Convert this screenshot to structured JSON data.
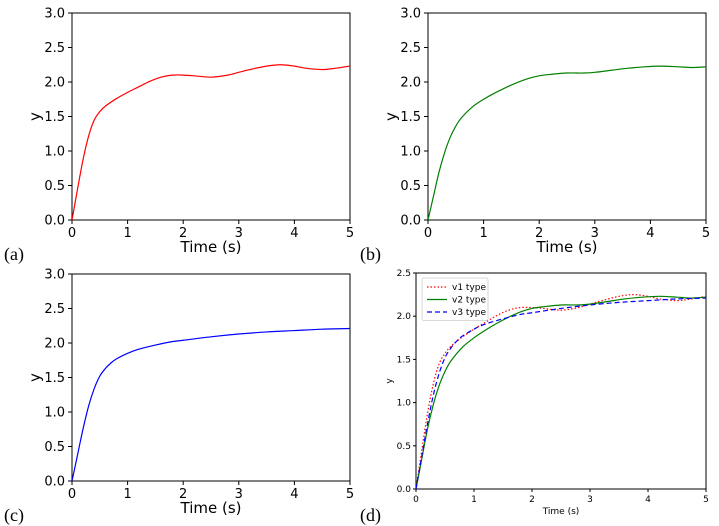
{
  "chart_data": [
    {
      "id": "a",
      "type": "line",
      "panel_label": "(a)",
      "xlabel": "Time (s)",
      "ylabel": "y",
      "xlim": [
        0,
        5
      ],
      "ylim": [
        0,
        3
      ],
      "xticks": [
        "0",
        "1",
        "2",
        "3",
        "4",
        "5"
      ],
      "yticks": [
        "0.0",
        "0.5",
        "1.0",
        "1.5",
        "2.0",
        "2.5",
        "3.0"
      ],
      "series": [
        {
          "name": "v1 type",
          "color": "#ff0000",
          "x": [
            0,
            0.1,
            0.2,
            0.3,
            0.4,
            0.5,
            0.6,
            0.8,
            1.0,
            1.2,
            1.4,
            1.6,
            1.8,
            2.0,
            2.2,
            2.5,
            2.8,
            3.0,
            3.2,
            3.5,
            3.75,
            4.0,
            4.2,
            4.5,
            4.75,
            5.0
          ],
          "y": [
            0,
            0.45,
            0.88,
            1.22,
            1.45,
            1.57,
            1.65,
            1.76,
            1.85,
            1.93,
            2.01,
            2.07,
            2.1,
            2.1,
            2.09,
            2.07,
            2.1,
            2.14,
            2.18,
            2.23,
            2.25,
            2.23,
            2.2,
            2.18,
            2.2,
            2.23
          ]
        }
      ]
    },
    {
      "id": "b",
      "type": "line",
      "panel_label": "(b)",
      "xlabel": "Time (s)",
      "ylabel": "y",
      "xlim": [
        0,
        5
      ],
      "ylim": [
        0,
        3
      ],
      "xticks": [
        "0",
        "1",
        "2",
        "3",
        "4",
        "5"
      ],
      "yticks": [
        "0.0",
        "0.5",
        "1.0",
        "1.5",
        "2.0",
        "2.5",
        "3.0"
      ],
      "series": [
        {
          "name": "v2 type",
          "color": "#008000",
          "x": [
            0,
            0.1,
            0.2,
            0.3,
            0.4,
            0.5,
            0.6,
            0.8,
            1.0,
            1.2,
            1.4,
            1.6,
            1.8,
            2.0,
            2.2,
            2.5,
            2.8,
            3.0,
            3.3,
            3.6,
            3.9,
            4.2,
            4.5,
            4.75,
            5.0
          ],
          "y": [
            0,
            0.35,
            0.7,
            0.98,
            1.2,
            1.36,
            1.48,
            1.64,
            1.75,
            1.84,
            1.92,
            1.99,
            2.05,
            2.09,
            2.11,
            2.13,
            2.13,
            2.14,
            2.17,
            2.2,
            2.22,
            2.23,
            2.22,
            2.21,
            2.22
          ]
        }
      ]
    },
    {
      "id": "c",
      "type": "line",
      "panel_label": "(c)",
      "xlabel": "Time (s)",
      "ylabel": "y",
      "xlim": [
        0,
        5
      ],
      "ylim": [
        0,
        3
      ],
      "xticks": [
        "0",
        "1",
        "2",
        "3",
        "4",
        "5"
      ],
      "yticks": [
        "0.0",
        "0.5",
        "1.0",
        "1.5",
        "2.0",
        "2.5",
        "3.0"
      ],
      "series": [
        {
          "name": "v3 type",
          "color": "#0000ff",
          "x": [
            0,
            0.1,
            0.2,
            0.3,
            0.4,
            0.5,
            0.6,
            0.7,
            0.8,
            1.0,
            1.2,
            1.5,
            1.8,
            2.0,
            2.5,
            3.0,
            3.5,
            4.0,
            4.5,
            5.0
          ],
          "y": [
            0,
            0.38,
            0.76,
            1.09,
            1.34,
            1.52,
            1.63,
            1.71,
            1.77,
            1.85,
            1.91,
            1.97,
            2.02,
            2.04,
            2.09,
            2.13,
            2.16,
            2.18,
            2.2,
            2.21
          ]
        }
      ]
    },
    {
      "id": "d",
      "type": "line",
      "panel_label": "(d)",
      "xlabel": "Time (s)",
      "ylabel": "y",
      "xlim": [
        0,
        5
      ],
      "ylim": [
        0,
        2.5
      ],
      "xticks": [
        "0",
        "1",
        "2",
        "3",
        "4",
        "5"
      ],
      "yticks": [
        "0.0",
        "0.5",
        "1.0",
        "1.5",
        "2.0",
        "2.5"
      ],
      "legend": "top-left",
      "series": [
        {
          "name": "v1 type",
          "color": "#ff0000",
          "style": "dotted",
          "x": [
            0,
            0.1,
            0.2,
            0.3,
            0.4,
            0.5,
            0.6,
            0.8,
            1.0,
            1.2,
            1.4,
            1.6,
            1.8,
            2.0,
            2.2,
            2.5,
            2.8,
            3.0,
            3.2,
            3.5,
            3.75,
            4.0,
            4.2,
            4.5,
            4.75,
            5.0
          ],
          "y": [
            0,
            0.45,
            0.88,
            1.22,
            1.45,
            1.57,
            1.65,
            1.76,
            1.85,
            1.93,
            2.01,
            2.07,
            2.1,
            2.1,
            2.09,
            2.07,
            2.1,
            2.14,
            2.18,
            2.23,
            2.25,
            2.23,
            2.2,
            2.18,
            2.2,
            2.23
          ]
        },
        {
          "name": "v2 type",
          "color": "#008000",
          "style": "solid",
          "x": [
            0,
            0.1,
            0.2,
            0.3,
            0.4,
            0.5,
            0.6,
            0.8,
            1.0,
            1.2,
            1.4,
            1.6,
            1.8,
            2.0,
            2.2,
            2.5,
            2.8,
            3.0,
            3.3,
            3.6,
            3.9,
            4.2,
            4.5,
            4.75,
            5.0
          ],
          "y": [
            0,
            0.35,
            0.7,
            0.98,
            1.2,
            1.36,
            1.48,
            1.64,
            1.75,
            1.84,
            1.92,
            1.99,
            2.05,
            2.09,
            2.11,
            2.13,
            2.13,
            2.14,
            2.17,
            2.2,
            2.22,
            2.23,
            2.22,
            2.21,
            2.22
          ]
        },
        {
          "name": "v3 type",
          "color": "#0000ff",
          "style": "dashed",
          "x": [
            0,
            0.1,
            0.2,
            0.3,
            0.4,
            0.5,
            0.6,
            0.7,
            0.8,
            1.0,
            1.2,
            1.5,
            1.8,
            2.0,
            2.5,
            3.0,
            3.5,
            4.0,
            4.5,
            5.0
          ],
          "y": [
            0,
            0.38,
            0.76,
            1.09,
            1.34,
            1.52,
            1.63,
            1.71,
            1.77,
            1.85,
            1.91,
            1.97,
            2.02,
            2.04,
            2.09,
            2.13,
            2.16,
            2.18,
            2.2,
            2.21
          ]
        }
      ]
    }
  ]
}
